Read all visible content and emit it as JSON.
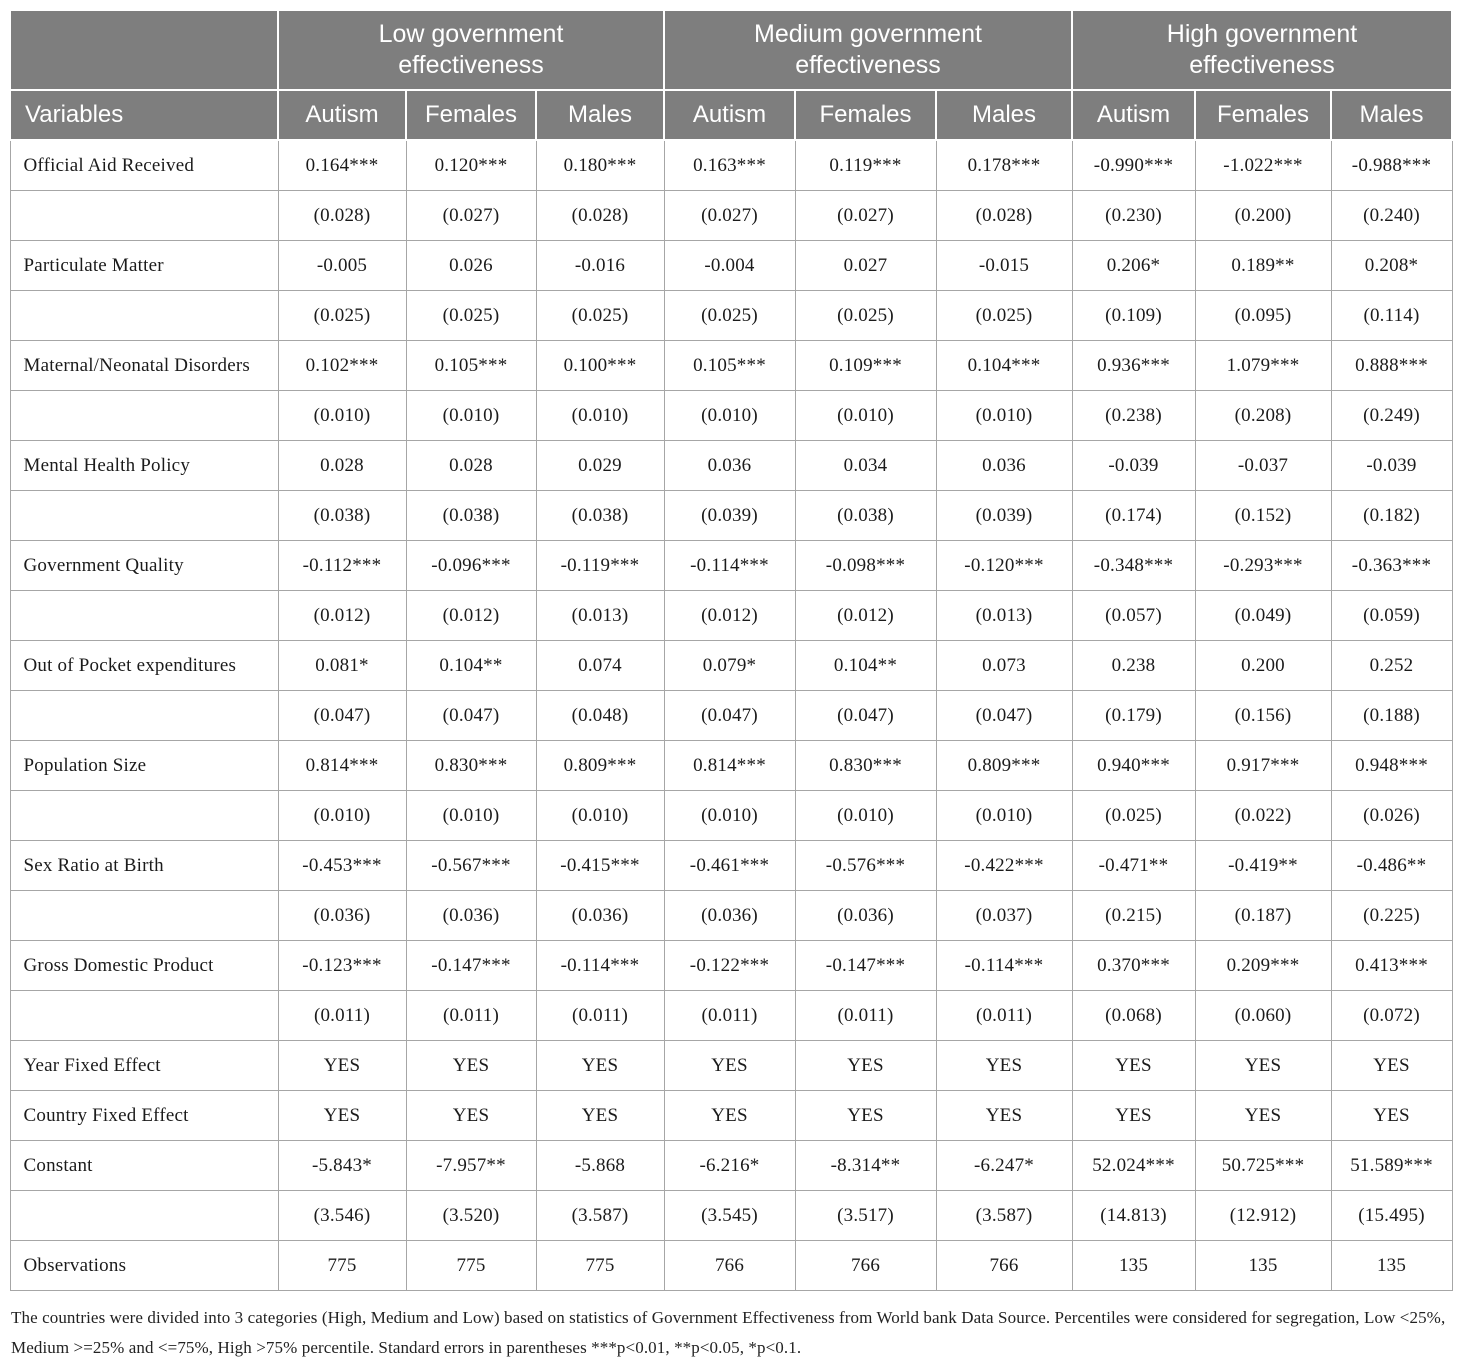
{
  "colors": {
    "header_bg": "#7e7e7e",
    "header_text": "#ffffff",
    "body_border": "#a6a6a6",
    "body_text": "#1b1b1b"
  },
  "table": {
    "variables_header": "Variables",
    "group_headers": [
      "Low government effectiveness",
      "Medium government effectiveness",
      "High government effectiveness"
    ],
    "sub_headers": [
      "Autism",
      "Females",
      "Males",
      "Autism",
      "Females",
      "Males",
      "Autism",
      "Females",
      "Males"
    ],
    "rows": [
      {
        "label": "Official Aid Received",
        "cells": [
          "0.164***",
          "0.120***",
          "0.180***",
          "0.163***",
          "0.119***",
          "0.178***",
          "-0.990***",
          "-1.022***",
          "-0.988***"
        ]
      },
      {
        "label": "",
        "cells": [
          "(0.028)",
          "(0.027)",
          "(0.028)",
          "(0.027)",
          "(0.027)",
          "(0.028)",
          "(0.230)",
          "(0.200)",
          "(0.240)"
        ]
      },
      {
        "label": "Particulate Matter",
        "cells": [
          "-0.005",
          "0.026",
          "-0.016",
          "-0.004",
          "0.027",
          "-0.015",
          "0.206*",
          "0.189**",
          "0.208*"
        ]
      },
      {
        "label": "",
        "cells": [
          "(0.025)",
          "(0.025)",
          "(0.025)",
          "(0.025)",
          "(0.025)",
          "(0.025)",
          "(0.109)",
          "(0.095)",
          "(0.114)"
        ]
      },
      {
        "label": "Maternal/Neonatal Disorders",
        "cells": [
          "0.102***",
          "0.105***",
          "0.100***",
          "0.105***",
          "0.109***",
          "0.104***",
          "0.936***",
          "1.079***",
          "0.888***"
        ]
      },
      {
        "label": "",
        "cells": [
          "(0.010)",
          "(0.010)",
          "(0.010)",
          "(0.010)",
          "(0.010)",
          "(0.010)",
          "(0.238)",
          "(0.208)",
          "(0.249)"
        ]
      },
      {
        "label": "Mental Health Policy",
        "cells": [
          "0.028",
          "0.028",
          "0.029",
          "0.036",
          "0.034",
          "0.036",
          "-0.039",
          "-0.037",
          "-0.039"
        ]
      },
      {
        "label": "",
        "cells": [
          "(0.038)",
          "(0.038)",
          "(0.038)",
          "(0.039)",
          "(0.038)",
          "(0.039)",
          "(0.174)",
          "(0.152)",
          "(0.182)"
        ]
      },
      {
        "label": "Government Quality",
        "cells": [
          "-0.112***",
          "-0.096***",
          "-0.119***",
          "-0.114***",
          "-0.098***",
          "-0.120***",
          "-0.348***",
          "-0.293***",
          "-0.363***"
        ]
      },
      {
        "label": "",
        "cells": [
          "(0.012)",
          "(0.012)",
          "(0.013)",
          "(0.012)",
          "(0.012)",
          "(0.013)",
          "(0.057)",
          "(0.049)",
          "(0.059)"
        ]
      },
      {
        "label": "Out of Pocket expenditures",
        "cells": [
          "0.081*",
          "0.104**",
          "0.074",
          "0.079*",
          "0.104**",
          "0.073",
          "0.238",
          "0.200",
          "0.252"
        ]
      },
      {
        "label": "",
        "cells": [
          "(0.047)",
          "(0.047)",
          "(0.048)",
          "(0.047)",
          "(0.047)",
          "(0.047)",
          "(0.179)",
          "(0.156)",
          "(0.188)"
        ]
      },
      {
        "label": "Population Size",
        "cells": [
          "0.814***",
          "0.830***",
          "0.809***",
          "0.814***",
          "0.830***",
          "0.809***",
          "0.940***",
          "0.917***",
          "0.948***"
        ]
      },
      {
        "label": "",
        "cells": [
          "(0.010)",
          "(0.010)",
          "(0.010)",
          "(0.010)",
          "(0.010)",
          "(0.010)",
          "(0.025)",
          "(0.022)",
          "(0.026)"
        ]
      },
      {
        "label": "Sex Ratio at Birth",
        "cells": [
          "-0.453***",
          "-0.567***",
          "-0.415***",
          "-0.461***",
          "-0.576***",
          "-0.422***",
          "-0.471**",
          "-0.419**",
          "-0.486**"
        ]
      },
      {
        "label": "",
        "cells": [
          "(0.036)",
          "(0.036)",
          "(0.036)",
          "(0.036)",
          "(0.036)",
          "(0.037)",
          "(0.215)",
          "(0.187)",
          "(0.225)"
        ]
      },
      {
        "label": "Gross Domestic Product",
        "cells": [
          "-0.123***",
          "-0.147***",
          "-0.114***",
          "-0.122***",
          "-0.147***",
          "-0.114***",
          "0.370***",
          "0.209***",
          "0.413***"
        ]
      },
      {
        "label": "",
        "cells": [
          "(0.011)",
          "(0.011)",
          "(0.011)",
          "(0.011)",
          "(0.011)",
          "(0.011)",
          "(0.068)",
          "(0.060)",
          "(0.072)"
        ]
      },
      {
        "label": "Year Fixed Effect",
        "cells": [
          "YES",
          "YES",
          "YES",
          "YES",
          "YES",
          "YES",
          "YES",
          "YES",
          "YES"
        ]
      },
      {
        "label": "Country Fixed Effect",
        "cells": [
          "YES",
          "YES",
          "YES",
          "YES",
          "YES",
          "YES",
          "YES",
          "YES",
          "YES"
        ]
      },
      {
        "label": "Constant",
        "cells": [
          "-5.843*",
          "-7.957**",
          "-5.868",
          "-6.216*",
          "-8.314**",
          "-6.247*",
          "52.024***",
          "50.725***",
          "51.589***"
        ]
      },
      {
        "label": "",
        "cells": [
          "(3.546)",
          "(3.520)",
          "(3.587)",
          "(3.545)",
          "(3.517)",
          "(3.587)",
          "(14.813)",
          "(12.912)",
          "(15.495)"
        ]
      },
      {
        "label": "Observations",
        "cells": [
          "775",
          "775",
          "775",
          "766",
          "766",
          "766",
          "135",
          "135",
          "135"
        ]
      }
    ]
  },
  "footnote": "The countries were divided into 3 categories (High, Medium and Low) based on statistics of Government Effectiveness from World bank Data Source. Percentiles were considered for segregation, Low <25%, Medium >=25% and <=75%, High >75% percentile. Standard errors in parentheses ***p<0.01, **p<0.05, *p<0.1."
}
